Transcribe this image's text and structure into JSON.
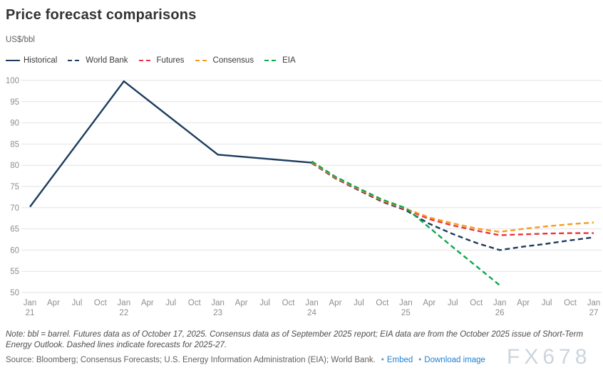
{
  "header": {
    "title": "Price forecast comparisons",
    "unit": "US$/bbl"
  },
  "legend": [
    {
      "label": "Historical",
      "color": "#1c3c60",
      "dash": false
    },
    {
      "label": "World Bank",
      "color": "#1c3c60",
      "dash": true
    },
    {
      "label": "Futures",
      "color": "#e8333c",
      "dash": true
    },
    {
      "label": "Consensus",
      "color": "#f79b1e",
      "dash": true
    },
    {
      "label": "EIA",
      "color": "#0ca84f",
      "dash": true
    }
  ],
  "chart_data": {
    "type": "line",
    "title": "Price forecast comparisons",
    "ylabel": "US$/bbl",
    "ylim": [
      50,
      100
    ],
    "yticks": [
      50,
      55,
      60,
      65,
      70,
      75,
      80,
      85,
      90,
      95,
      100
    ],
    "grid": true,
    "legend_position": "top",
    "x_unit": "quarter",
    "ticks": [
      {
        "m": "Jan",
        "yr": "21"
      },
      {
        "m": "Apr"
      },
      {
        "m": "Jul"
      },
      {
        "m": "Oct"
      },
      {
        "m": "Jan",
        "yr": "22"
      },
      {
        "m": "Apr"
      },
      {
        "m": "Jul"
      },
      {
        "m": "Oct"
      },
      {
        "m": "Jan",
        "yr": "23"
      },
      {
        "m": "Apr"
      },
      {
        "m": "Jul"
      },
      {
        "m": "Oct"
      },
      {
        "m": "Jan",
        "yr": "24"
      },
      {
        "m": "Apr"
      },
      {
        "m": "Jul"
      },
      {
        "m": "Oct"
      },
      {
        "m": "Jan",
        "yr": "25"
      },
      {
        "m": "Apr"
      },
      {
        "m": "Jul"
      },
      {
        "m": "Oct"
      },
      {
        "m": "Jan",
        "yr": "26"
      },
      {
        "m": "Apr"
      },
      {
        "m": "Jul"
      },
      {
        "m": "Oct"
      },
      {
        "m": "Jan",
        "yr": "27"
      }
    ],
    "series": [
      {
        "name": "World Bank",
        "color": "#1c3c60",
        "dash": true,
        "points": [
          [
            12,
            80.5
          ],
          [
            13,
            76.9
          ],
          [
            14,
            74.1
          ],
          [
            15,
            71.4
          ],
          [
            16,
            69.4
          ],
          [
            17,
            66.2
          ],
          [
            18,
            63.8
          ],
          [
            19,
            61.7
          ],
          [
            20,
            60.0
          ],
          [
            21,
            60.8
          ],
          [
            22,
            61.5
          ],
          [
            23,
            62.3
          ],
          [
            24,
            63.0
          ]
        ]
      },
      {
        "name": "Futures",
        "color": "#e8333c",
        "dash": true,
        "points": [
          [
            12,
            80.6
          ],
          [
            13,
            77.0
          ],
          [
            14,
            74.25
          ],
          [
            15,
            71.6
          ],
          [
            16,
            69.6
          ],
          [
            17,
            67.3
          ],
          [
            18,
            65.8
          ],
          [
            19,
            64.6
          ],
          [
            20,
            63.5
          ],
          [
            21,
            63.7
          ],
          [
            22,
            63.9
          ],
          [
            23,
            64.0
          ],
          [
            24,
            64.0
          ]
        ]
      },
      {
        "name": "Consensus",
        "color": "#f79b1e",
        "dash": true,
        "points": [
          [
            12,
            80.75
          ],
          [
            13,
            77.15
          ],
          [
            14,
            74.4
          ],
          [
            15,
            71.75
          ],
          [
            16,
            69.75
          ],
          [
            17,
            67.7
          ],
          [
            18,
            66.3
          ],
          [
            19,
            65.1
          ],
          [
            20,
            64.3
          ],
          [
            21,
            65.0
          ],
          [
            22,
            65.6
          ],
          [
            23,
            66.1
          ],
          [
            24,
            66.5
          ]
        ]
      },
      {
        "name": "EIA",
        "color": "#0ca84f",
        "dash": true,
        "points": [
          [
            12,
            80.9
          ],
          [
            13,
            77.3
          ],
          [
            14,
            74.55
          ],
          [
            15,
            71.9
          ],
          [
            16,
            69.9
          ],
          [
            17,
            65.3
          ],
          [
            18,
            60.7
          ],
          [
            19,
            56.2
          ],
          [
            20,
            51.7
          ]
        ]
      },
      {
        "name": "Historical",
        "color": "#1c3c60",
        "dash": false,
        "points": [
          [
            0,
            70.2
          ],
          [
            4,
            99.8
          ],
          [
            8,
            82.5
          ],
          [
            12,
            80.6
          ]
        ]
      }
    ]
  },
  "footer": {
    "note": "Note: bbl = barrel. Futures data as of October 17, 2025. Consensus data as of September 2025 report; EIA data are from the October 2025 issue of Short-Term Energy Outlook. Dashed lines indicate forecasts for 2025-27.",
    "source": "Source: Bloomberg; Consensus Forecasts; U.S. Energy Information Administration (EIA); World Bank.",
    "links": [
      {
        "label": "Embed"
      },
      {
        "label": "Download image"
      }
    ],
    "watermark": "FX678"
  }
}
